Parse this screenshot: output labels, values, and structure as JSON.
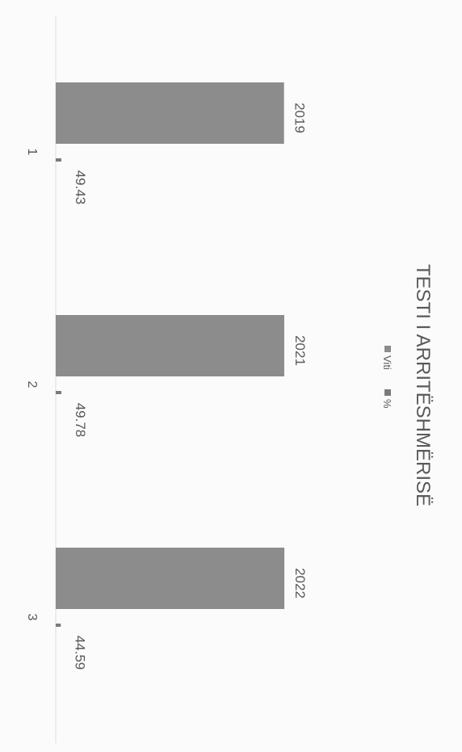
{
  "chart_data": {
    "type": "bar",
    "orientation": "horizontal",
    "title": "TESTI I ARRITËSHMËRISË",
    "categories": [
      "1",
      "2",
      "3"
    ],
    "series": [
      {
        "name": "Viti",
        "values": [
          2019,
          2021,
          2022
        ],
        "color": "#8c8c8c"
      },
      {
        "name": "%",
        "values": [
          49.43,
          49.78,
          44.59
        ],
        "color": "#7a7a7a"
      }
    ],
    "xlim": [
      0,
      2500
    ],
    "grid": false,
    "legend": "below-title"
  }
}
